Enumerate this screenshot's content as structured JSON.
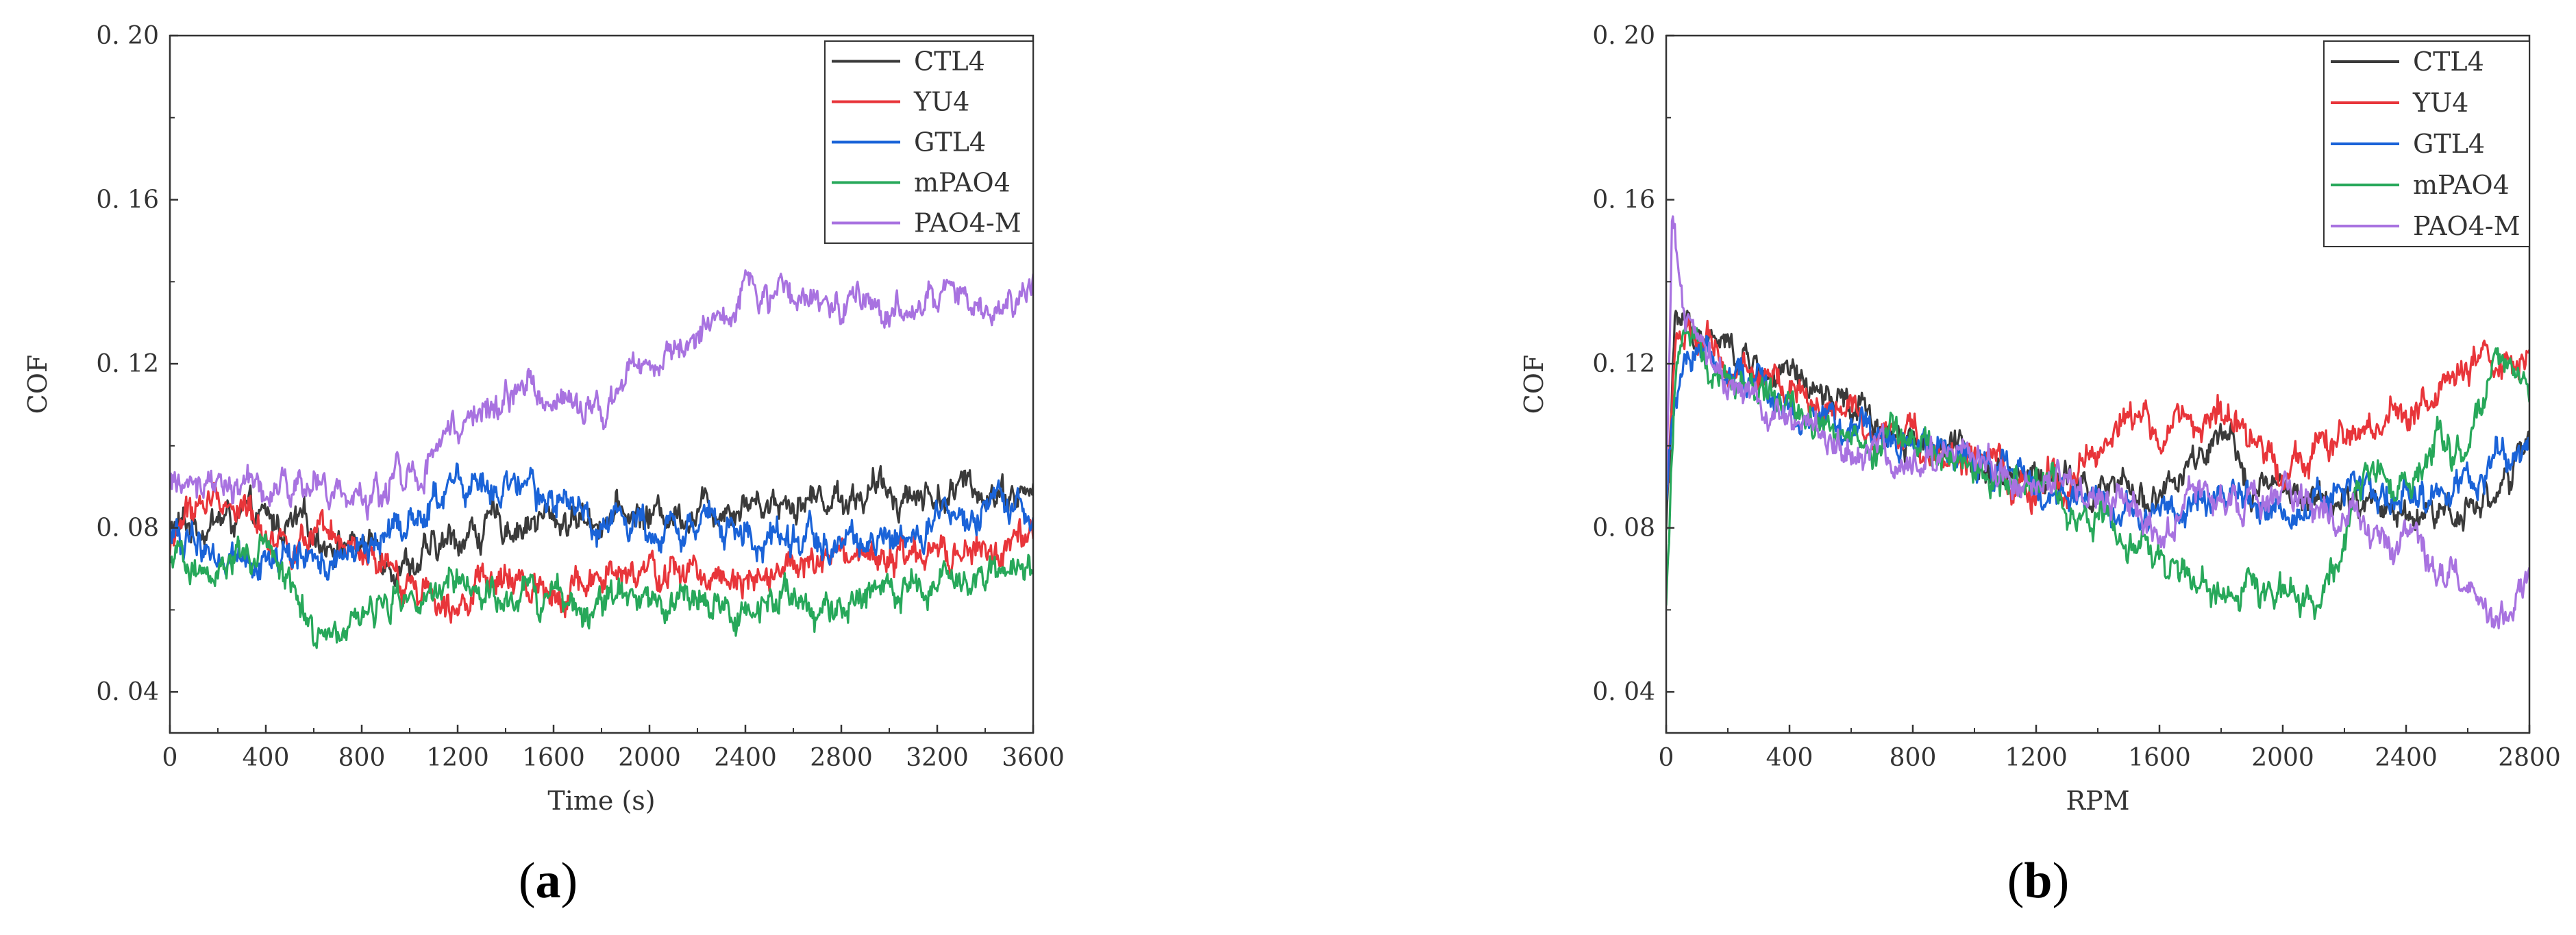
{
  "colors": {
    "CTL4": "#3a3a3a",
    "YU4": "#e8353a",
    "GTL4": "#1a63d8",
    "mPAO4": "#27a85a",
    "PAO4-M": "#a872e0"
  },
  "chart_data": [
    {
      "type": "line",
      "panel_label": "a",
      "xlabel": "Time (s)",
      "ylabel": "COF",
      "xlim": [
        0,
        3600
      ],
      "ylim": [
        0.03,
        0.2
      ],
      "xticks": [
        0,
        400,
        800,
        1200,
        1600,
        2000,
        2400,
        2800,
        3200,
        3600
      ],
      "yticks": [
        0.04,
        0.08,
        0.12,
        0.16,
        0.2
      ],
      "ytick_labels": [
        "0. 04",
        "0. 08",
        "0. 12",
        "0. 16",
        "0. 20"
      ],
      "grid": false,
      "legend_position": "top-right",
      "series": [
        {
          "name": "CTL4",
          "x": [
            0,
            50,
            100,
            200,
            300,
            400,
            500,
            600,
            700,
            800,
            900,
            1000,
            1100,
            1200,
            1400,
            1600,
            1800,
            2000,
            2200,
            2400,
            2600,
            2800,
            3000,
            3200,
            3400,
            3600
          ],
          "values": [
            0.079,
            0.08,
            0.081,
            0.082,
            0.082,
            0.081,
            0.08,
            0.079,
            0.077,
            0.076,
            0.074,
            0.072,
            0.073,
            0.078,
            0.081,
            0.082,
            0.083,
            0.083,
            0.085,
            0.087,
            0.087,
            0.088,
            0.089,
            0.088,
            0.09,
            0.088
          ]
        },
        {
          "name": "YU4",
          "x": [
            0,
            50,
            100,
            200,
            300,
            400,
            500,
            600,
            700,
            800,
            900,
            1000,
            1100,
            1200,
            1400,
            1600,
            1800,
            2000,
            2200,
            2400,
            2600,
            2800,
            3000,
            3200,
            3400,
            3600
          ],
          "values": [
            0.074,
            0.082,
            0.085,
            0.087,
            0.085,
            0.08,
            0.077,
            0.076,
            0.075,
            0.072,
            0.068,
            0.066,
            0.065,
            0.065,
            0.066,
            0.066,
            0.067,
            0.068,
            0.069,
            0.07,
            0.07,
            0.071,
            0.072,
            0.072,
            0.074,
            0.075
          ]
        },
        {
          "name": "GTL4",
          "x": [
            0,
            50,
            100,
            200,
            300,
            400,
            500,
            600,
            700,
            800,
            900,
            1000,
            1100,
            1200,
            1400,
            1600,
            1800,
            2000,
            2200,
            2400,
            2600,
            2800,
            3000,
            3200,
            3400,
            3600
          ],
          "values": [
            0.078,
            0.077,
            0.076,
            0.074,
            0.074,
            0.073,
            0.072,
            0.073,
            0.071,
            0.074,
            0.078,
            0.082,
            0.086,
            0.091,
            0.088,
            0.086,
            0.082,
            0.081,
            0.082,
            0.078,
            0.077,
            0.077,
            0.076,
            0.08,
            0.082,
            0.085
          ]
        },
        {
          "name": "mPAO4",
          "x": [
            0,
            50,
            100,
            200,
            300,
            400,
            500,
            600,
            700,
            800,
            900,
            1000,
            1100,
            1200,
            1400,
            1600,
            1800,
            2000,
            2200,
            2400,
            2600,
            2800,
            3000,
            3200,
            3400,
            3600
          ],
          "values": [
            0.07,
            0.07,
            0.071,
            0.072,
            0.073,
            0.072,
            0.068,
            0.055,
            0.057,
            0.058,
            0.062,
            0.063,
            0.063,
            0.063,
            0.063,
            0.062,
            0.062,
            0.061,
            0.06,
            0.059,
            0.063,
            0.06,
            0.064,
            0.065,
            0.068,
            0.071
          ]
        },
        {
          "name": "PAO4-M",
          "x": [
            0,
            50,
            100,
            200,
            300,
            400,
            500,
            600,
            700,
            800,
            900,
            1000,
            1100,
            1200,
            1300,
            1400,
            1500,
            1600,
            1700,
            1800,
            1900,
            2000,
            2100,
            2200,
            2300,
            2400,
            2600,
            2800,
            3000,
            3200,
            3400,
            3600
          ],
          "values": [
            0.09,
            0.09,
            0.091,
            0.09,
            0.089,
            0.088,
            0.09,
            0.089,
            0.088,
            0.085,
            0.09,
            0.094,
            0.098,
            0.102,
            0.108,
            0.112,
            0.115,
            0.112,
            0.111,
            0.108,
            0.117,
            0.122,
            0.124,
            0.127,
            0.133,
            0.136,
            0.136,
            0.135,
            0.132,
            0.136,
            0.136,
            0.138
          ]
        }
      ]
    },
    {
      "type": "line",
      "panel_label": "b",
      "xlabel": "RPM",
      "ylabel": "COF",
      "xlim": [
        0,
        2800
      ],
      "ylim": [
        0.03,
        0.2
      ],
      "xticks": [
        0,
        400,
        800,
        1200,
        1600,
        2000,
        2400,
        2800
      ],
      "yticks": [
        0.04,
        0.08,
        0.12,
        0.16,
        0.2
      ],
      "ytick_labels": [
        "0. 04",
        "0. 08",
        "0. 12",
        "0. 16",
        "0. 20"
      ],
      "grid": false,
      "legend_position": "top-right",
      "series": [
        {
          "name": "CTL4",
          "x": [
            0,
            30,
            80,
            200,
            400,
            600,
            800,
            1000,
            1200,
            1400,
            1600,
            1700,
            1800,
            1900,
            2000,
            2100,
            2200,
            2400,
            2600,
            2700,
            2800
          ],
          "values": [
            0.08,
            0.13,
            0.128,
            0.123,
            0.115,
            0.108,
            0.102,
            0.097,
            0.093,
            0.088,
            0.088,
            0.094,
            0.1,
            0.092,
            0.088,
            0.086,
            0.086,
            0.084,
            0.085,
            0.09,
            0.098
          ]
        },
        {
          "name": "YU4",
          "x": [
            0,
            30,
            80,
            200,
            400,
            600,
            800,
            1000,
            1200,
            1300,
            1400,
            1500,
            1600,
            1700,
            1800,
            1900,
            2000,
            2200,
            2400,
            2600,
            2700,
            2800
          ],
          "values": [
            0.085,
            0.128,
            0.125,
            0.12,
            0.113,
            0.107,
            0.101,
            0.096,
            0.088,
            0.092,
            0.1,
            0.108,
            0.102,
            0.106,
            0.108,
            0.099,
            0.097,
            0.1,
            0.108,
            0.118,
            0.12,
            0.118
          ]
        },
        {
          "name": "GTL4",
          "x": [
            0,
            30,
            80,
            200,
            400,
            600,
            800,
            1000,
            1200,
            1400,
            1600,
            1800,
            2000,
            2200,
            2400,
            2600,
            2700,
            2800
          ],
          "values": [
            0.085,
            0.115,
            0.125,
            0.12,
            0.11,
            0.104,
            0.1,
            0.095,
            0.09,
            0.086,
            0.085,
            0.085,
            0.087,
            0.088,
            0.088,
            0.09,
            0.095,
            0.1
          ]
        },
        {
          "name": "mPAO4",
          "x": [
            0,
            30,
            60,
            100,
            200,
            400,
            600,
            800,
            1000,
            1200,
            1400,
            1500,
            1600,
            1700,
            1800,
            1900,
            2000,
            2100,
            2200,
            2300,
            2400,
            2500,
            2600,
            2700,
            2800
          ],
          "values": [
            0.06,
            0.115,
            0.13,
            0.128,
            0.117,
            0.107,
            0.102,
            0.099,
            0.094,
            0.09,
            0.082,
            0.077,
            0.072,
            0.067,
            0.063,
            0.064,
            0.064,
            0.064,
            0.078,
            0.096,
            0.09,
            0.104,
            0.097,
            0.12,
            0.113
          ]
        },
        {
          "name": "PAO4-M",
          "x": [
            0,
            20,
            60,
            150,
            300,
            500,
            700,
            900,
            1100,
            1300,
            1500,
            1600,
            1700,
            1800,
            1900,
            2000,
            2100,
            2200,
            2300,
            2400,
            2500,
            2600,
            2700,
            2800
          ],
          "values": [
            0.09,
            0.155,
            0.13,
            0.118,
            0.108,
            0.101,
            0.097,
            0.096,
            0.094,
            0.092,
            0.085,
            0.082,
            0.084,
            0.085,
            0.087,
            0.088,
            0.085,
            0.081,
            0.078,
            0.075,
            0.07,
            0.065,
            0.058,
            0.066
          ]
        }
      ]
    }
  ]
}
